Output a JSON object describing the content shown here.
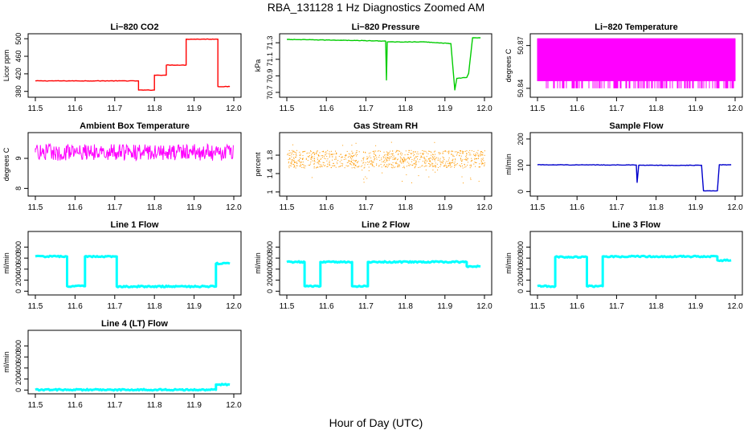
{
  "figure": {
    "title": "RBA_131128  1 Hz Diagnostics Zoomed AM",
    "xlabel": "Hour of Day (UTC)"
  },
  "chart_data": [
    {
      "type": "line",
      "title": "Li−820 CO2",
      "xlabel": "",
      "ylabel": "Licor ppm",
      "color": "#ff0000",
      "xlim": [
        11.5,
        12.0
      ],
      "ylim": [
        374,
        504
      ],
      "xticks": [
        "11.5",
        "11.6",
        "11.7",
        "11.8",
        "11.9",
        "12.0"
      ],
      "yticks": [
        380,
        420,
        460,
        500
      ],
      "series": [
        {
          "x": [
            11.5,
            11.76,
            11.76,
            11.8,
            11.8,
            11.83,
            11.83,
            11.88,
            11.88,
            11.96,
            11.96,
            11.99
          ],
          "y": [
            404,
            404,
            383,
            383,
            417,
            417,
            440,
            440,
            499,
            499,
            391,
            391
          ]
        }
      ]
    },
    {
      "type": "line",
      "title": "Li−820 Pressure",
      "xlabel": "",
      "ylabel": "kPa",
      "color": "#00cc00",
      "xlim": [
        11.5,
        12.0
      ],
      "ylim": [
        70.68,
        71.37
      ],
      "xticks": [
        "11.5",
        "11.6",
        "11.7",
        "11.8",
        "11.9",
        "12.0"
      ],
      "yticks": [
        70.7,
        70.9,
        71.1,
        71.3
      ],
      "series": [
        {
          "x": [
            11.5,
            11.65,
            11.75,
            11.752,
            11.754,
            11.85,
            11.915,
            11.925,
            11.93,
            11.955,
            11.96,
            11.97,
            11.99
          ],
          "y": [
            71.34,
            71.33,
            71.32,
            70.85,
            71.31,
            71.31,
            71.29,
            70.73,
            70.87,
            70.88,
            70.93,
            71.36,
            71.36
          ]
        }
      ]
    },
    {
      "type": "line",
      "title": "Li−820 Temperature",
      "xlabel": "",
      "ylabel": "degrees C",
      "color": "#ff00ff",
      "xlim": [
        11.5,
        12.0
      ],
      "ylim": [
        50.836,
        50.876
      ],
      "xticks": [
        "11.5",
        "11.6",
        "11.7",
        "11.8",
        "11.9",
        "12.0"
      ],
      "yticks": [
        50.84,
        50.87
      ],
      "series": [
        {
          "x": [
            11.5,
            11.99
          ],
          "y": [
            50.84,
            50.875
          ]
        }
      ]
    },
    {
      "type": "line",
      "title": "Ambient Box Temperature",
      "xlabel": "",
      "ylabel": "degrees C",
      "color": "#ff00ff",
      "xlim": [
        11.5,
        12.0
      ],
      "ylim": [
        7.85,
        9.75
      ],
      "xticks": [
        "11.5",
        "11.6",
        "11.7",
        "11.8",
        "11.9",
        "12.0"
      ],
      "yticks": [
        8.0,
        9.0
      ],
      "series": [
        {
          "x": [
            11.5,
            11.99
          ],
          "y": [
            9.2,
            9.2
          ]
        }
      ]
    },
    {
      "type": "scatter",
      "title": "Gas Stream RH",
      "xlabel": "",
      "ylabel": "percent",
      "color": "#ff9900",
      "xlim": [
        11.5,
        12.0
      ],
      "ylim": [
        0.98,
        2.22
      ],
      "xticks": [
        "11.5",
        "11.6",
        "11.7",
        "11.8",
        "11.9",
        "12.0"
      ],
      "yticks": [
        1.0,
        1.4,
        1.8
      ],
      "series": [
        {
          "x": [
            11.5,
            11.99
          ],
          "y": [
            1.72,
            1.72
          ]
        }
      ]
    },
    {
      "type": "line",
      "title": "Sample Flow",
      "xlabel": "",
      "ylabel": "ml/min",
      "color": "#0000cc",
      "xlim": [
        11.5,
        12.0
      ],
      "ylim": [
        -5,
        212
      ],
      "xticks": [
        "11.5",
        "11.6",
        "11.7",
        "11.8",
        "11.9",
        "12.0"
      ],
      "yticks": [
        0,
        100,
        200
      ],
      "series": [
        {
          "x": [
            11.5,
            11.75,
            11.752,
            11.756,
            11.915,
            11.92,
            11.955,
            11.96,
            11.99
          ],
          "y": [
            102,
            101,
            35,
            100,
            100,
            3,
            3,
            102,
            102
          ]
        }
      ]
    },
    {
      "type": "line",
      "title": "Line 1 Flow",
      "xlabel": "",
      "ylabel": "ml/min",
      "color": "#00ffff",
      "xlim": [
        11.5,
        12.0
      ],
      "ylim": [
        -10,
        1025
      ],
      "xticks": [
        "11.5",
        "11.6",
        "11.7",
        "11.8",
        "11.9",
        "12.0"
      ],
      "yticks": [
        0,
        200,
        400,
        600,
        800
      ],
      "series": [
        {
          "x": [
            11.5,
            11.58,
            11.58,
            11.625,
            11.625,
            11.705,
            11.705,
            11.955,
            11.955,
            11.99
          ],
          "y": [
            630,
            630,
            90,
            90,
            630,
            630,
            85,
            85,
            500,
            500
          ]
        }
      ]
    },
    {
      "type": "line",
      "title": "Line 2 Flow",
      "xlabel": "",
      "ylabel": "ml/min",
      "color": "#00ffff",
      "xlim": [
        11.5,
        12.0
      ],
      "ylim": [
        -10,
        1025
      ],
      "xticks": [
        "11.5",
        "11.6",
        "11.7",
        "11.8",
        "11.9",
        "12.0"
      ],
      "yticks": [
        0,
        200,
        400,
        600,
        800
      ],
      "series": [
        {
          "x": [
            11.5,
            11.545,
            11.545,
            11.585,
            11.585,
            11.665,
            11.665,
            11.705,
            11.705,
            11.955,
            11.955,
            11.99
          ],
          "y": [
            530,
            530,
            90,
            90,
            530,
            530,
            90,
            90,
            530,
            530,
            450,
            450
          ]
        }
      ]
    },
    {
      "type": "line",
      "title": "Line 3 Flow",
      "xlabel": "",
      "ylabel": "ml/min",
      "color": "#00ffff",
      "xlim": [
        11.5,
        12.0
      ],
      "ylim": [
        -10,
        1025
      ],
      "xticks": [
        "11.5",
        "11.6",
        "11.7",
        "11.8",
        "11.9",
        "12.0"
      ],
      "yticks": [
        0,
        200,
        400,
        600,
        800
      ],
      "series": [
        {
          "x": [
            11.5,
            11.545,
            11.545,
            11.625,
            11.625,
            11.665,
            11.665,
            11.955,
            11.955,
            11.99
          ],
          "y": [
            90,
            90,
            620,
            620,
            90,
            90,
            630,
            630,
            560,
            560
          ]
        }
      ]
    },
    {
      "type": "line",
      "title": "Line 4 (LT) Flow",
      "xlabel": "",
      "ylabel": "ml/min",
      "color": "#00ffff",
      "xlim": [
        11.5,
        12.0
      ],
      "ylim": [
        -10,
        1025
      ],
      "xticks": [
        "11.5",
        "11.6",
        "11.7",
        "11.8",
        "11.9",
        "12.0"
      ],
      "yticks": [
        0,
        200,
        400,
        600,
        800
      ],
      "series": [
        {
          "x": [
            11.5,
            11.955,
            11.955,
            11.99
          ],
          "y": [
            5,
            5,
            100,
            100
          ]
        }
      ]
    }
  ]
}
